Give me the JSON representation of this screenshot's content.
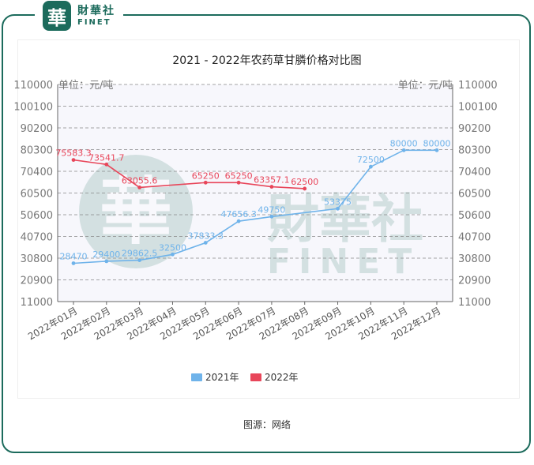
{
  "brand": {
    "seal_glyph": "華",
    "name_cn": "財華社",
    "name_en": "FINET"
  },
  "watermark": {
    "glyph": "華",
    "text_cn": "財華社",
    "text_en": "FINET"
  },
  "source_note": "图源：网络",
  "colors": {
    "series_2022": "#e8465a",
    "series_2021": "#6fb3ea",
    "brand": "#1c6b5c",
    "plot_bg": "#f7f7fc"
  },
  "chart_data": {
    "type": "line",
    "title": "2021 - 2022年农药草甘膦价格对比图",
    "ylabel_left": "单位：元/吨",
    "ylabel_right": "单位：元/吨",
    "ylim": [
      11000,
      110000
    ],
    "yticks": [
      "110000",
      "100100",
      "90200",
      "80300",
      "70400",
      "60500",
      "50600",
      "40700",
      "30800",
      "20900",
      "11000"
    ],
    "categories": [
      "2022年01月",
      "2022年02月",
      "2022年03月",
      "2022年04月",
      "2022年05月",
      "2022年06月",
      "2022年07月",
      "2022年08月",
      "2022年09月",
      "2022年10月",
      "2022年11月",
      "2022年12月"
    ],
    "legend_position": "bottom",
    "grid": true,
    "series": [
      {
        "name": "2022年",
        "color": "#e8465a",
        "values": [
          75583.3,
          73541.7,
          63055.6,
          null,
          65250,
          65250,
          63357.1,
          62500,
          null,
          null,
          null,
          null
        ],
        "labels": [
          "75583.3",
          "73541.7",
          "63055.6",
          "",
          "65250",
          "65250",
          "63357.1",
          "62500",
          "",
          "",
          "",
          ""
        ]
      },
      {
        "name": "2021年",
        "color": "#6fb3ea",
        "values": [
          28470,
          29400,
          29862.5,
          32500,
          37833.3,
          47656.3,
          49750,
          null,
          53375,
          72500,
          80000,
          80000
        ],
        "labels": [
          "28470",
          "29400",
          "29862.5",
          "32500",
          "37833.3",
          "47656.3",
          "49750",
          "",
          "53375",
          "72500",
          "80000",
          "80000"
        ]
      }
    ]
  }
}
